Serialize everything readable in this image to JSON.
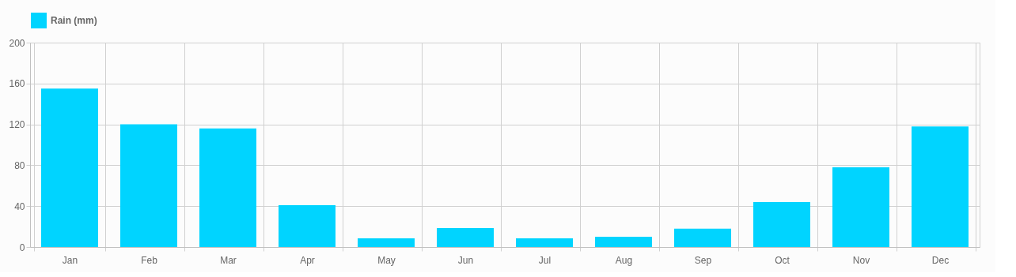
{
  "chart_data": {
    "type": "bar",
    "categories": [
      "Jan",
      "Feb",
      "Mar",
      "Apr",
      "May",
      "Jun",
      "Jul",
      "Aug",
      "Sep",
      "Oct",
      "Nov",
      "Dec"
    ],
    "series": [
      {
        "name": "Rain (mm)",
        "color": "#00d4ff",
        "values": [
          155,
          120,
          116,
          41,
          8.5,
          18.5,
          8.5,
          10,
          18,
          44,
          78,
          118
        ]
      }
    ],
    "ylim": [
      0,
      200
    ],
    "yticks": [
      0,
      40,
      80,
      120,
      160,
      200
    ],
    "grid": true,
    "legend": "top"
  }
}
